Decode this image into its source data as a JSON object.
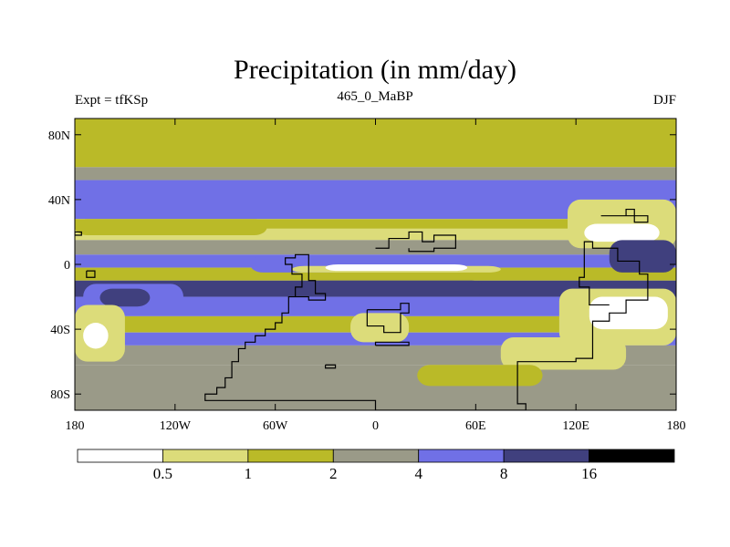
{
  "chart_data": {
    "type": "heatmap",
    "title": "Precipitation (in mm/day)",
    "left_string": "Expt = tfKSp",
    "center_string": "465_0_MaBP",
    "right_string": "DJF",
    "xlim": [
      -180,
      180
    ],
    "ylim": [
      -90,
      90
    ],
    "x_ticks": [
      {
        "value": -180,
        "label": "180"
      },
      {
        "value": -120,
        "label": "120W"
      },
      {
        "value": -60,
        "label": "60W"
      },
      {
        "value": 0,
        "label": "0"
      },
      {
        "value": 60,
        "label": "60E"
      },
      {
        "value": 120,
        "label": "120E"
      },
      {
        "value": 180,
        "label": "180"
      }
    ],
    "y_ticks": [
      {
        "value": 80,
        "label": "80N"
      },
      {
        "value": 40,
        "label": "40N"
      },
      {
        "value": 0,
        "label": "0"
      },
      {
        "value": -40,
        "label": "40S"
      },
      {
        "value": -80,
        "label": "80S"
      }
    ],
    "levels": [
      0.5,
      1,
      2,
      4,
      8,
      16
    ],
    "level_labels": [
      "0.5",
      "1",
      "2",
      "4",
      "8",
      "16"
    ],
    "bins": [
      {
        "range": "<0.5",
        "color": "#ffffff"
      },
      {
        "range": "0.5-1",
        "color": "#dcdc7a"
      },
      {
        "range": "1-2",
        "color": "#baba28"
      },
      {
        "range": "2-4",
        "color": "#9a9a88"
      },
      {
        "range": "4-8",
        "color": "#7070e6"
      },
      {
        "range": "8-16",
        "color": "#40407e"
      },
      {
        "range": ">16",
        "color": "#000000"
      }
    ],
    "zonal_bands": [
      {
        "lat": [
          60,
          90
        ],
        "bin": 2
      },
      {
        "lat": [
          52,
          60
        ],
        "bin": 3
      },
      {
        "lat": [
          28,
          52
        ],
        "bin": 4
      },
      {
        "lat": [
          22,
          28
        ],
        "bin": 2
      },
      {
        "lat": [
          15,
          22
        ],
        "bin": 1
      },
      {
        "lat": [
          6,
          15
        ],
        "bin": 3
      },
      {
        "lat": [
          -2,
          6
        ],
        "bin": 4
      },
      {
        "lat": [
          -10,
          -2
        ],
        "bin": 2
      },
      {
        "lat": [
          -20,
          -10
        ],
        "bin": 5
      },
      {
        "lat": [
          -32,
          -20
        ],
        "bin": 4
      },
      {
        "lat": [
          -42,
          -32
        ],
        "bin": 2
      },
      {
        "lat": [
          -50,
          -42
        ],
        "bin": 4
      },
      {
        "lat": [
          -62,
          -50
        ],
        "bin": 3
      },
      {
        "lat": [
          -90,
          -62
        ],
        "bin": 3
      }
    ],
    "patches": [
      {
        "lon": [
          -180,
          -65
        ],
        "lat": [
          18,
          28
        ],
        "bin": 2
      },
      {
        "lon": [
          -75,
          -20
        ],
        "lat": [
          -5,
          5
        ],
        "bin": 4
      },
      {
        "lon": [
          -50,
          75
        ],
        "lat": [
          -5,
          -1
        ],
        "bin": 1
      },
      {
        "lon": [
          -30,
          55
        ],
        "lat": [
          -4,
          0
        ],
        "bin": 0
      },
      {
        "lon": [
          -45,
          65
        ],
        "lat": [
          -20,
          -10
        ],
        "bin": 5
      },
      {
        "lon": [
          -175,
          -115
        ],
        "lat": [
          -30,
          -12
        ],
        "bin": 4
      },
      {
        "lon": [
          -165,
          -135
        ],
        "lat": [
          -26,
          -15
        ],
        "bin": 5
      },
      {
        "lon": [
          -180,
          -150
        ],
        "lat": [
          -60,
          -25
        ],
        "bin": 1
      },
      {
        "lon": [
          -175,
          -160
        ],
        "lat": [
          -52,
          -36
        ],
        "bin": 0
      },
      {
        "lon": [
          110,
          180
        ],
        "lat": [
          -50,
          -15
        ],
        "bin": 1
      },
      {
        "lon": [
          128,
          175
        ],
        "lat": [
          -40,
          -20
        ],
        "bin": 0
      },
      {
        "lon": [
          115,
          180
        ],
        "lat": [
          10,
          40
        ],
        "bin": 1
      },
      {
        "lon": [
          125,
          170
        ],
        "lat": [
          14,
          25
        ],
        "bin": 0
      },
      {
        "lon": [
          140,
          180
        ],
        "lat": [
          -5,
          15
        ],
        "bin": 5
      },
      {
        "lon": [
          -15,
          20
        ],
        "lat": [
          -48,
          -30
        ],
        "bin": 1
      },
      {
        "lon": [
          75,
          150
        ],
        "lat": [
          -65,
          -45
        ],
        "bin": 1
      },
      {
        "lon": [
          25,
          100
        ],
        "lat": [
          -75,
          -62
        ],
        "bin": 2
      }
    ],
    "coastlines": [
      "-102,-82 -102,-80 -95,-80 -95,-76 -90,-76 -90,-70 -86,-70 -86,-60 -82,-60 -82,-52 -78,-52 -78,-48 -72,-48 -72,-44 -66,-44 -66,-40 -60,-40 -60,-36 -56,-36 -56,-30 -52,-30 -52,-20 -48,-20 -48,-14 -44,-14 -44,-6 -50,-6 -50,0 -54,0 -54,4 -48,4 -48,6 -40,6 -40,-10 -36,-10 -36,-18 -30,-18 -30,-22 -40,-22 -40,-20 -48,-20",
      "-102,-82 -102,-84 0,-84 0,-90 90,-90 90,-86 85,-86 85,-60 120,-60 120,-58 130,-58 130,-35 140,-35 140,-30 150,-30 150,-22 163,-22 163,-6 158,-6 158,2 145,2 145,10 130,10 130,14 125,14 125,-8 122,-8 122,-14 128,-14 128,-25 140,-25",
      "0,-50 20,-50 20,-48 0,-48 0,-50",
      "-30,-62 -24,-62 -24,-64 -30,-64 -30,-62",
      "-5,-28 -5,-38 5,-38 5,-42 15,-42 15,-30 20,-30 20,-24 15,-24 15,-28 5,-28 -5,-28",
      "0,10 8,10 8,16 20,16 20,20 28,20 28,14 35,14 35,18 48,18 48,10 35,10 35,8 20,8 20,10",
      "135,30 150,30 150,34 155,34 155,26 163,26 163,30 135,30",
      "-180,20 -176,20 -176,18 -180,18 -180,20",
      "-173,-4 -168,-4 -168,-8 -173,-8 -173,-4"
    ]
  }
}
